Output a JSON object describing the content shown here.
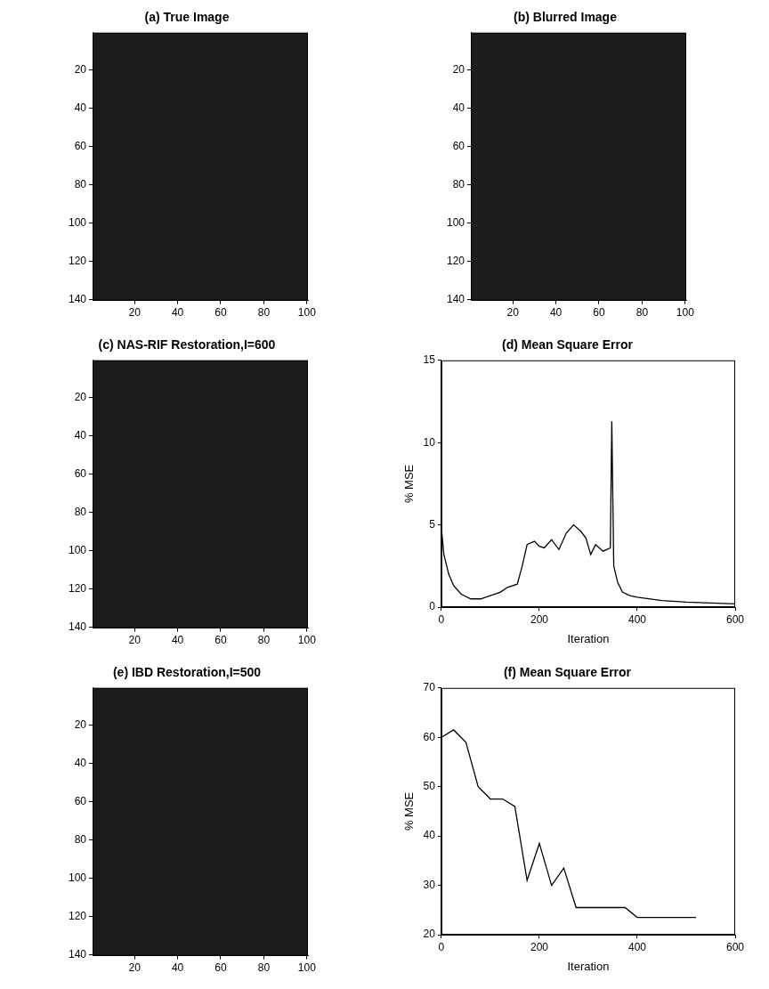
{
  "chart_data": [
    {
      "type": "image",
      "title": "(a) True Image",
      "xlim": [
        0.5,
        100.5
      ],
      "xticks": [
        20,
        40,
        60,
        80,
        100
      ],
      "ylim": [
        0.5,
        140.5
      ],
      "yticks": [
        20,
        40,
        60,
        80,
        100,
        120,
        140
      ]
    },
    {
      "type": "image",
      "title": "(b) Blurred Image",
      "xlim": [
        0.5,
        100.5
      ],
      "xticks": [
        20,
        40,
        60,
        80,
        100
      ],
      "ylim": [
        0.5,
        140.5
      ],
      "yticks": [
        20,
        40,
        60,
        80,
        100,
        120,
        140
      ]
    },
    {
      "type": "image",
      "title": "(c) NAS-RIF Restoration,I=600",
      "xlim": [
        0.5,
        100.5
      ],
      "xticks": [
        20,
        40,
        60,
        80,
        100
      ],
      "ylim": [
        0.5,
        140.5
      ],
      "yticks": [
        20,
        40,
        60,
        80,
        100,
        120,
        140
      ]
    },
    {
      "type": "line",
      "title": "(d) Mean Square Error",
      "x_label": "Iteration",
      "y_label": "% MSE",
      "xlim": [
        0,
        600
      ],
      "xticks": [
        0,
        200,
        400,
        600
      ],
      "ylim": [
        0,
        15
      ],
      "yticks": [
        0,
        5,
        10,
        15
      ],
      "color": "#000000",
      "x": [
        0,
        5,
        15,
        25,
        40,
        60,
        80,
        100,
        120,
        135,
        155,
        165,
        175,
        190,
        200,
        210,
        225,
        240,
        255,
        270,
        285,
        295,
        305,
        315,
        330,
        345,
        348,
        352,
        360,
        370,
        385,
        400,
        450,
        500,
        550,
        600
      ],
      "values": [
        4.8,
        3.2,
        2.0,
        1.3,
        0.8,
        0.5,
        0.5,
        0.7,
        0.9,
        1.2,
        1.4,
        2.5,
        3.8,
        4.0,
        3.7,
        3.6,
        4.1,
        3.5,
        4.5,
        5.0,
        4.6,
        4.2,
        3.2,
        3.8,
        3.4,
        3.6,
        11.3,
        2.5,
        1.5,
        0.9,
        0.7,
        0.6,
        0.4,
        0.3,
        0.25,
        0.2
      ]
    },
    {
      "type": "image",
      "title": "(e) IBD Restoration,I=500",
      "xlim": [
        0.5,
        100.5
      ],
      "xticks": [
        20,
        40,
        60,
        80,
        100
      ],
      "ylim": [
        0.5,
        140.5
      ],
      "yticks": [
        20,
        40,
        60,
        80,
        100,
        120,
        140
      ]
    },
    {
      "type": "line",
      "title": "(f) Mean Square Error",
      "x_label": "Iteration",
      "y_label": "% MSE",
      "xlim": [
        0,
        600
      ],
      "xticks": [
        0,
        200,
        400,
        600
      ],
      "ylim": [
        20,
        70
      ],
      "yticks": [
        20,
        30,
        40,
        50,
        60,
        70
      ],
      "color": "#000000",
      "x": [
        0,
        25,
        50,
        75,
        100,
        125,
        150,
        175,
        200,
        225,
        250,
        275,
        300,
        350,
        375,
        400,
        500,
        520
      ],
      "values": [
        60,
        61.5,
        59,
        50,
        47.5,
        47.5,
        46,
        31,
        38.5,
        30,
        33.5,
        25.5,
        25.5,
        25.5,
        25.5,
        23.5,
        23.5,
        23.5
      ]
    }
  ]
}
